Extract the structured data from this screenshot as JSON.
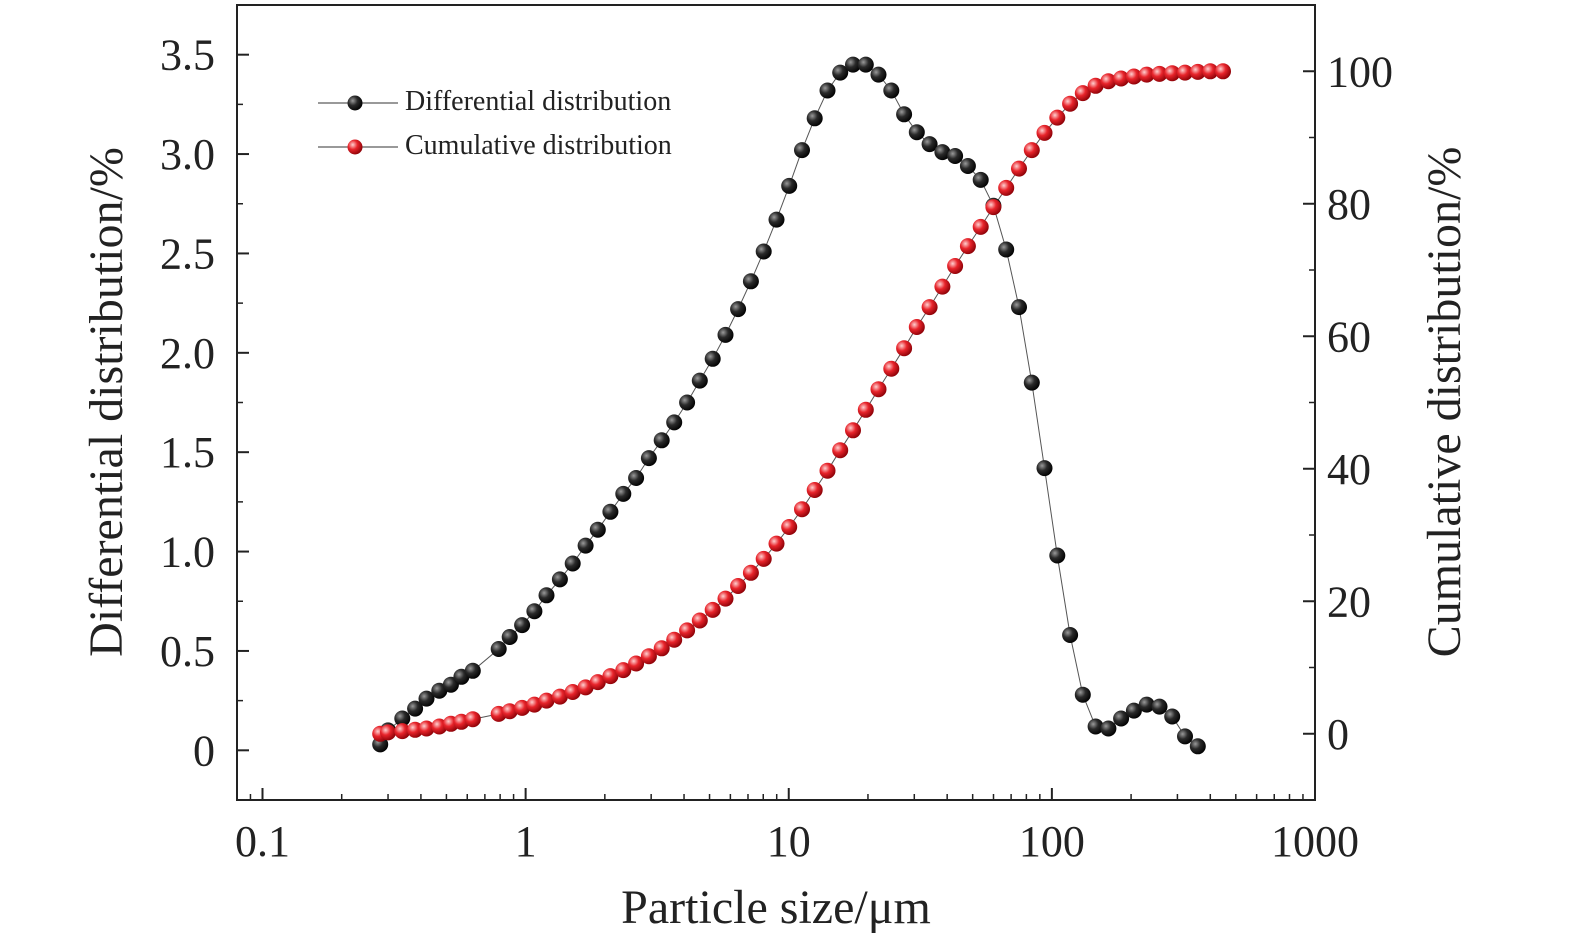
{
  "chart_data": {
    "type": "scatter",
    "x_scale": "log",
    "xlabel": "Particle size/μm",
    "ylabel_left": "Differential distribution/%",
    "ylabel_right": "Cumulative distribution/%",
    "xlim": [
      0.08,
      1000
    ],
    "ylim_left": [
      -0.25,
      3.75
    ],
    "ylim_right": [
      -10,
      110
    ],
    "x_ticks": [
      0.1,
      1,
      10,
      100,
      1000
    ],
    "x_tick_labels": [
      "0.1",
      "1",
      "10",
      "100",
      "1000"
    ],
    "y_left_ticks": [
      0,
      0.5,
      1.0,
      1.5,
      2.0,
      2.5,
      3.0,
      3.5
    ],
    "y_left_tick_labels": [
      "0",
      "0.5",
      "1.0",
      "1.5",
      "2.0",
      "2.5",
      "3.0",
      "3.5"
    ],
    "y_right_ticks": [
      0,
      20,
      40,
      60,
      80,
      100
    ],
    "y_right_tick_labels": [
      "0",
      "20",
      "40",
      "60",
      "80",
      "100"
    ],
    "legend_position": "top-left",
    "grid": false,
    "series": [
      {
        "name": "Differential distribution",
        "axis": "left",
        "color": "#111111",
        "points": [
          [
            0.28,
            0.03
          ],
          [
            0.3,
            0.1
          ],
          [
            0.34,
            0.16
          ],
          [
            0.38,
            0.21
          ],
          [
            0.42,
            0.26
          ],
          [
            0.47,
            0.3
          ],
          [
            0.52,
            0.33
          ],
          [
            0.57,
            0.37
          ],
          [
            0.63,
            0.4
          ],
          [
            0.79,
            0.51
          ],
          [
            0.87,
            0.57
          ],
          [
            0.97,
            0.63
          ],
          [
            1.08,
            0.7
          ],
          [
            1.2,
            0.78
          ],
          [
            1.35,
            0.86
          ],
          [
            1.51,
            0.94
          ],
          [
            1.69,
            1.03
          ],
          [
            1.88,
            1.11
          ],
          [
            2.1,
            1.2
          ],
          [
            2.35,
            1.29
          ],
          [
            2.63,
            1.37
          ],
          [
            2.94,
            1.47
          ],
          [
            3.29,
            1.56
          ],
          [
            3.67,
            1.65
          ],
          [
            4.11,
            1.75
          ],
          [
            4.59,
            1.86
          ],
          [
            5.14,
            1.97
          ],
          [
            5.75,
            2.09
          ],
          [
            6.42,
            2.22
          ],
          [
            7.18,
            2.36
          ],
          [
            8.03,
            2.51
          ],
          [
            8.98,
            2.67
          ],
          [
            10.04,
            2.84
          ],
          [
            11.23,
            3.02
          ],
          [
            12.55,
            3.18
          ],
          [
            14.04,
            3.32
          ],
          [
            15.69,
            3.41
          ],
          [
            17.55,
            3.45
          ],
          [
            19.62,
            3.45
          ],
          [
            21.94,
            3.4
          ],
          [
            24.53,
            3.32
          ],
          [
            27.43,
            3.2
          ],
          [
            30.67,
            3.11
          ],
          [
            34.3,
            3.05
          ],
          [
            38.35,
            3.01
          ],
          [
            42.89,
            2.99
          ],
          [
            47.96,
            2.94
          ],
          [
            53.63,
            2.87
          ],
          [
            59.97,
            2.74
          ],
          [
            67.07,
            2.52
          ],
          [
            75.0,
            2.23
          ],
          [
            83.86,
            1.85
          ],
          [
            93.77,
            1.42
          ],
          [
            104.86,
            0.98
          ],
          [
            117.26,
            0.58
          ],
          [
            131.12,
            0.28
          ],
          [
            146.62,
            0.12
          ],
          [
            163.96,
            0.11
          ],
          [
            183.34,
            0.16
          ],
          [
            205.02,
            0.2
          ],
          [
            229.26,
            0.23
          ],
          [
            256.37,
            0.22
          ],
          [
            286.68,
            0.17
          ],
          [
            320.59,
            0.07
          ],
          [
            358.5,
            0.02
          ]
        ]
      },
      {
        "name": "Cumulative distribution",
        "axis": "right",
        "color": "#e0202a",
        "points": [
          [
            0.28,
            0.0
          ],
          [
            0.3,
            0.2
          ],
          [
            0.34,
            0.4
          ],
          [
            0.38,
            0.6
          ],
          [
            0.42,
            0.8
          ],
          [
            0.47,
            1.1
          ],
          [
            0.52,
            1.5
          ],
          [
            0.57,
            1.8
          ],
          [
            0.63,
            2.2
          ],
          [
            0.79,
            3.0
          ],
          [
            0.87,
            3.4
          ],
          [
            0.97,
            3.9
          ],
          [
            1.08,
            4.4
          ],
          [
            1.2,
            5.0
          ],
          [
            1.35,
            5.6
          ],
          [
            1.51,
            6.3
          ],
          [
            1.69,
            7.0
          ],
          [
            1.88,
            7.8
          ],
          [
            2.1,
            8.7
          ],
          [
            2.35,
            9.6
          ],
          [
            2.63,
            10.6
          ],
          [
            2.94,
            11.7
          ],
          [
            3.29,
            12.9
          ],
          [
            3.67,
            14.2
          ],
          [
            4.11,
            15.6
          ],
          [
            4.59,
            17.1
          ],
          [
            5.14,
            18.7
          ],
          [
            5.75,
            20.4
          ],
          [
            6.42,
            22.3
          ],
          [
            7.18,
            24.3
          ],
          [
            8.03,
            26.4
          ],
          [
            8.98,
            28.7
          ],
          [
            10.04,
            31.2
          ],
          [
            11.23,
            33.9
          ],
          [
            12.55,
            36.8
          ],
          [
            14.04,
            39.7
          ],
          [
            15.69,
            42.8
          ],
          [
            17.55,
            45.8
          ],
          [
            19.62,
            48.9
          ],
          [
            21.94,
            52.0
          ],
          [
            24.53,
            55.1
          ],
          [
            27.43,
            58.2
          ],
          [
            30.67,
            61.4
          ],
          [
            34.3,
            64.4
          ],
          [
            38.35,
            67.5
          ],
          [
            42.89,
            70.6
          ],
          [
            47.96,
            73.6
          ],
          [
            53.63,
            76.5
          ],
          [
            59.97,
            79.5
          ],
          [
            67.07,
            82.4
          ],
          [
            75.0,
            85.3
          ],
          [
            83.86,
            88.1
          ],
          [
            93.77,
            90.7
          ],
          [
            104.86,
            93.0
          ],
          [
            117.26,
            95.1
          ],
          [
            131.12,
            96.7
          ],
          [
            146.62,
            97.8
          ],
          [
            163.96,
            98.5
          ],
          [
            183.34,
            98.9
          ],
          [
            205.02,
            99.2
          ],
          [
            229.26,
            99.5
          ],
          [
            256.37,
            99.6
          ],
          [
            286.68,
            99.7
          ],
          [
            320.59,
            99.8
          ],
          [
            358.5,
            99.9
          ],
          [
            400.0,
            100.0
          ],
          [
            447.0,
            100.0
          ]
        ]
      }
    ]
  }
}
